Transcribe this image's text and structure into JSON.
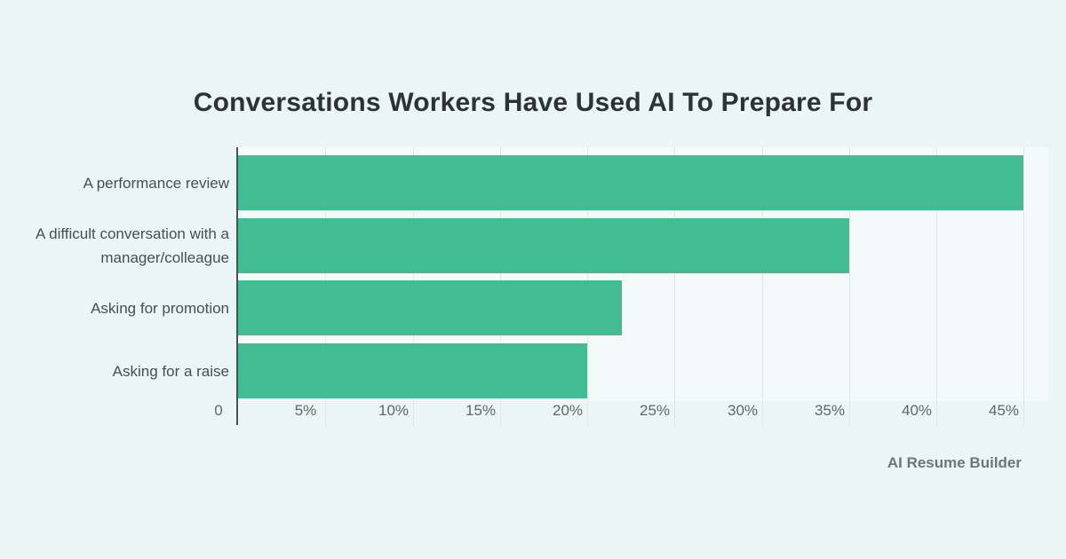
{
  "title": "Conversations Workers Have Used AI To Prepare For",
  "source": "AI Resume Builder",
  "colors": {
    "page_background": "#ecf5f5",
    "plot_background": "#f3faf9",
    "bar": "#41bc93",
    "gridline": "#dce7e6",
    "axis_line": "#4f4f4f",
    "title_text": "#2d3238",
    "category_text": "#474e56",
    "tick_text": "#5d676e",
    "source_text": "#6b757e"
  },
  "chart_data": {
    "type": "bar",
    "orientation": "horizontal",
    "title": "Conversations Workers Have Used AI To Prepare For",
    "categories": [
      "A performance review",
      "A difficult conversation with a manager/colleague",
      "Asking for promotion",
      "Asking for a raise"
    ],
    "values": [
      45,
      35,
      22,
      20
    ],
    "unit": "%",
    "xlabel": "",
    "ylabel": "",
    "xlim": [
      0,
      46.4
    ],
    "x_ticks": [
      0,
      5,
      10,
      15,
      20,
      25,
      30,
      35,
      40,
      45
    ],
    "x_tick_labels": [
      "0",
      "5%",
      "10%",
      "15%",
      "20%",
      "25%",
      "30%",
      "35%",
      "40%",
      "45%"
    ],
    "grid": true,
    "legend": false,
    "source_label": "AI Resume Builder"
  }
}
